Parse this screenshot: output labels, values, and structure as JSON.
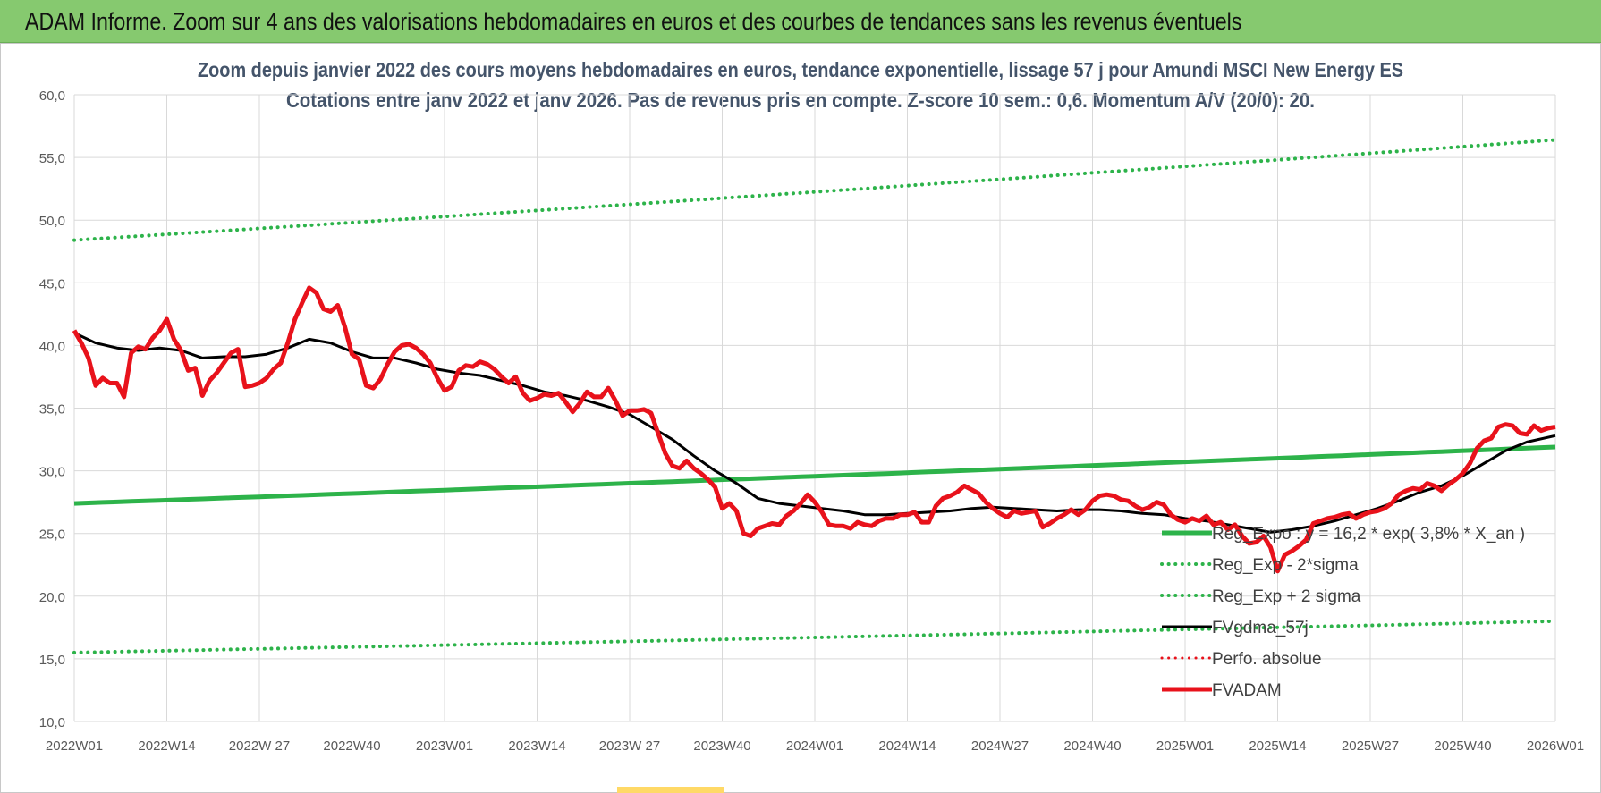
{
  "banner": {
    "title": "ADAM Informe. Zoom sur 4 ans des valorisations hebdomadaires en euros et des courbes de tendances sans les revenus éventuels"
  },
  "chart_data": {
    "type": "line",
    "title_line1": "Zoom depuis janvier 2022 des cours moyens hebdomadaires en euros, tendance exponentielle, lissage 57 j pour Amundi MSCI New Energy ES",
    "title_line2": "Cotations entre janv 2022 et janv 2026. Pas de revenus pris en compte. Z-score 10 sem.: 0,6. Momentum A/V (20/0): 20.",
    "ylim": [
      10,
      60
    ],
    "y_ticks": [
      "10,0",
      "15,0",
      "20,0",
      "25,0",
      "30,0",
      "35,0",
      "40,0",
      "45,0",
      "50,0",
      "55,0",
      "60,0"
    ],
    "x_range": [
      0,
      208
    ],
    "x_ticks": [
      {
        "x": 0,
        "label": "2022W01"
      },
      {
        "x": 13,
        "label": "2022W14"
      },
      {
        "x": 26,
        "label": "2022W 27"
      },
      {
        "x": 39,
        "label": "2022W40"
      },
      {
        "x": 52,
        "label": "2023W01"
      },
      {
        "x": 65,
        "label": "2023W14"
      },
      {
        "x": 78,
        "label": "2023W 27"
      },
      {
        "x": 91,
        "label": "2023W40"
      },
      {
        "x": 104,
        "label": "2024W01"
      },
      {
        "x": 117,
        "label": "2024W14"
      },
      {
        "x": 130,
        "label": "2024W27"
      },
      {
        "x": 143,
        "label": "2024W40"
      },
      {
        "x": 156,
        "label": "2025W01"
      },
      {
        "x": 169,
        "label": "2025W14"
      },
      {
        "x": 182,
        "label": "2025W27"
      },
      {
        "x": 195,
        "label": "2025W40"
      },
      {
        "x": 208,
        "label": "2026W01"
      }
    ],
    "trend_start": 27.4,
    "trend_end": 31.9,
    "upper_band_start": 48.4,
    "upper_band_end": 56.4,
    "lower_band_start": 15.5,
    "lower_band_end": 18.0,
    "series": [
      {
        "name": "Reg_Expo : y = 16,2 * exp( 3,8% * X_an )",
        "style": "solid",
        "color": "#2db34a",
        "width": 5
      },
      {
        "name": "Reg_Exp - 2*sigma",
        "style": "dotted",
        "color": "#2db34a",
        "width": 4
      },
      {
        "name": "Reg_Exp + 2 sigma",
        "style": "dotted",
        "color": "#2db34a",
        "width": 4
      },
      {
        "name": "FVgdma_57j",
        "style": "solid",
        "color": "#000000",
        "width": 3,
        "points": [
          [
            0,
            41.0
          ],
          [
            3,
            40.2
          ],
          [
            6,
            39.8
          ],
          [
            9,
            39.6
          ],
          [
            12,
            39.8
          ],
          [
            15,
            39.6
          ],
          [
            18,
            39.0
          ],
          [
            21,
            39.1
          ],
          [
            24,
            39.1
          ],
          [
            27,
            39.3
          ],
          [
            30,
            39.8
          ],
          [
            33,
            40.5
          ],
          [
            36,
            40.2
          ],
          [
            39,
            39.5
          ],
          [
            42,
            39.0
          ],
          [
            45,
            39.0
          ],
          [
            48,
            38.6
          ],
          [
            51,
            38.1
          ],
          [
            54,
            37.8
          ],
          [
            57,
            37.6
          ],
          [
            60,
            37.2
          ],
          [
            63,
            36.8
          ],
          [
            66,
            36.3
          ],
          [
            69,
            36.0
          ],
          [
            72,
            35.6
          ],
          [
            75,
            35.1
          ],
          [
            78,
            34.5
          ],
          [
            81,
            33.5
          ],
          [
            84,
            32.5
          ],
          [
            87,
            31.2
          ],
          [
            90,
            30.0
          ],
          [
            93,
            29.0
          ],
          [
            96,
            27.8
          ],
          [
            99,
            27.4
          ],
          [
            102,
            27.2
          ],
          [
            105,
            27.0
          ],
          [
            108,
            26.8
          ],
          [
            111,
            26.5
          ],
          [
            114,
            26.5
          ],
          [
            117,
            26.6
          ],
          [
            120,
            26.7
          ],
          [
            123,
            26.8
          ],
          [
            126,
            27.0
          ],
          [
            129,
            27.1
          ],
          [
            132,
            27.0
          ],
          [
            135,
            26.9
          ],
          [
            138,
            26.8
          ],
          [
            141,
            26.9
          ],
          [
            144,
            26.9
          ],
          [
            147,
            26.8
          ],
          [
            150,
            26.6
          ],
          [
            153,
            26.5
          ],
          [
            156,
            26.2
          ],
          [
            159,
            26.0
          ],
          [
            162,
            25.7
          ],
          [
            165,
            25.4
          ],
          [
            168,
            25.1
          ],
          [
            171,
            25.3
          ],
          [
            174,
            25.6
          ],
          [
            177,
            26.0
          ],
          [
            180,
            26.5
          ],
          [
            183,
            27.0
          ],
          [
            186,
            27.6
          ],
          [
            189,
            28.3
          ],
          [
            192,
            28.8
          ],
          [
            195,
            29.6
          ],
          [
            198,
            30.6
          ],
          [
            201,
            31.6
          ],
          [
            204,
            32.3
          ],
          [
            208,
            32.8
          ]
        ]
      },
      {
        "name": "Perfo. absolue",
        "style": "dotted",
        "color": "#e8121b",
        "width": 3
      },
      {
        "name": "FVADAM",
        "style": "solid",
        "color": "#e8121b",
        "width": 5,
        "points": [
          [
            0,
            41.2
          ],
          [
            1,
            40.2
          ],
          [
            2,
            39.0
          ],
          [
            3,
            36.8
          ],
          [
            4,
            37.4
          ],
          [
            5,
            37.0
          ],
          [
            6,
            37.0
          ],
          [
            7,
            35.9
          ],
          [
            8,
            39.4
          ],
          [
            9,
            39.9
          ],
          [
            10,
            39.7
          ],
          [
            11,
            40.6
          ],
          [
            12,
            41.2
          ],
          [
            13,
            42.1
          ],
          [
            14,
            40.5
          ],
          [
            15,
            39.6
          ],
          [
            16,
            38.0
          ],
          [
            17,
            38.2
          ],
          [
            18,
            36.0
          ],
          [
            19,
            37.2
          ],
          [
            20,
            37.8
          ],
          [
            21,
            38.6
          ],
          [
            22,
            39.4
          ],
          [
            23,
            39.7
          ],
          [
            24,
            36.7
          ],
          [
            25,
            36.8
          ],
          [
            26,
            37.0
          ],
          [
            27,
            37.4
          ],
          [
            28,
            38.1
          ],
          [
            29,
            38.6
          ],
          [
            30,
            40.2
          ],
          [
            31,
            42.1
          ],
          [
            32,
            43.4
          ],
          [
            33,
            44.6
          ],
          [
            34,
            44.2
          ],
          [
            35,
            42.9
          ],
          [
            36,
            42.7
          ],
          [
            37,
            43.2
          ],
          [
            38,
            41.5
          ],
          [
            39,
            39.3
          ],
          [
            40,
            38.9
          ],
          [
            41,
            36.8
          ],
          [
            42,
            36.6
          ],
          [
            43,
            37.3
          ],
          [
            44,
            38.5
          ],
          [
            45,
            39.5
          ],
          [
            46,
            40.0
          ],
          [
            47,
            40.1
          ],
          [
            48,
            39.8
          ],
          [
            49,
            39.3
          ],
          [
            50,
            38.6
          ],
          [
            51,
            37.4
          ],
          [
            52,
            36.4
          ],
          [
            53,
            36.7
          ],
          [
            54,
            38.0
          ],
          [
            55,
            38.4
          ],
          [
            56,
            38.3
          ],
          [
            57,
            38.7
          ],
          [
            58,
            38.5
          ],
          [
            59,
            38.1
          ],
          [
            60,
            37.5
          ],
          [
            61,
            37.0
          ],
          [
            62,
            37.5
          ],
          [
            63,
            36.2
          ],
          [
            64,
            35.6
          ],
          [
            65,
            35.8
          ],
          [
            66,
            36.1
          ],
          [
            67,
            36.0
          ],
          [
            68,
            36.2
          ],
          [
            69,
            35.5
          ],
          [
            70,
            34.7
          ],
          [
            71,
            35.4
          ],
          [
            72,
            36.3
          ],
          [
            73,
            35.9
          ],
          [
            74,
            35.9
          ],
          [
            75,
            36.6
          ],
          [
            76,
            35.6
          ],
          [
            77,
            34.4
          ],
          [
            78,
            34.8
          ],
          [
            79,
            34.8
          ],
          [
            80,
            34.9
          ],
          [
            81,
            34.6
          ],
          [
            82,
            33.0
          ],
          [
            83,
            31.4
          ],
          [
            84,
            30.4
          ],
          [
            85,
            30.2
          ],
          [
            86,
            30.8
          ],
          [
            87,
            30.2
          ],
          [
            88,
            29.8
          ],
          [
            89,
            29.3
          ],
          [
            90,
            28.7
          ],
          [
            91,
            27.0
          ],
          [
            92,
            27.4
          ],
          [
            93,
            26.8
          ],
          [
            94,
            25.0
          ],
          [
            95,
            24.8
          ],
          [
            96,
            25.4
          ],
          [
            97,
            25.6
          ],
          [
            98,
            25.8
          ],
          [
            99,
            25.7
          ],
          [
            100,
            26.4
          ],
          [
            101,
            26.8
          ],
          [
            102,
            27.4
          ],
          [
            103,
            28.1
          ],
          [
            104,
            27.5
          ],
          [
            105,
            26.7
          ],
          [
            106,
            25.7
          ],
          [
            107,
            25.6
          ],
          [
            108,
            25.6
          ],
          [
            109,
            25.4
          ],
          [
            110,
            25.9
          ],
          [
            111,
            25.7
          ],
          [
            112,
            25.6
          ],
          [
            113,
            26.0
          ],
          [
            114,
            26.2
          ],
          [
            115,
            26.2
          ],
          [
            116,
            26.5
          ],
          [
            117,
            26.5
          ],
          [
            118,
            26.7
          ],
          [
            119,
            25.9
          ],
          [
            120,
            25.9
          ],
          [
            121,
            27.2
          ],
          [
            122,
            27.8
          ],
          [
            123,
            28.0
          ],
          [
            124,
            28.3
          ],
          [
            125,
            28.8
          ],
          [
            126,
            28.5
          ],
          [
            127,
            28.2
          ],
          [
            128,
            27.5
          ],
          [
            129,
            27.0
          ],
          [
            130,
            26.6
          ],
          [
            131,
            26.3
          ],
          [
            132,
            26.8
          ],
          [
            133,
            26.6
          ],
          [
            134,
            26.7
          ],
          [
            135,
            26.8
          ],
          [
            136,
            25.5
          ],
          [
            137,
            25.8
          ],
          [
            138,
            26.2
          ],
          [
            139,
            26.5
          ],
          [
            140,
            26.9
          ],
          [
            141,
            26.5
          ],
          [
            142,
            26.9
          ],
          [
            143,
            27.6
          ],
          [
            144,
            28.0
          ],
          [
            145,
            28.1
          ],
          [
            146,
            28.0
          ],
          [
            147,
            27.7
          ],
          [
            148,
            27.6
          ],
          [
            149,
            27.2
          ],
          [
            150,
            26.9
          ],
          [
            151,
            27.1
          ],
          [
            152,
            27.5
          ],
          [
            153,
            27.3
          ],
          [
            154,
            26.5
          ],
          [
            155,
            26.1
          ],
          [
            156,
            25.9
          ],
          [
            157,
            26.2
          ],
          [
            158,
            26.0
          ],
          [
            159,
            26.4
          ],
          [
            160,
            25.7
          ],
          [
            161,
            25.9
          ],
          [
            162,
            25.3
          ],
          [
            163,
            25.7
          ],
          [
            164,
            24.8
          ],
          [
            165,
            24.2
          ],
          [
            166,
            24.3
          ],
          [
            167,
            24.8
          ],
          [
            168,
            23.9
          ],
          [
            169,
            22.0
          ],
          [
            170,
            23.3
          ],
          [
            171,
            23.6
          ],
          [
            172,
            24.0
          ],
          [
            173,
            24.5
          ],
          [
            174,
            25.8
          ],
          [
            175,
            26.0
          ],
          [
            176,
            26.2
          ],
          [
            177,
            26.3
          ],
          [
            178,
            26.5
          ],
          [
            179,
            26.6
          ],
          [
            180,
            26.2
          ],
          [
            181,
            26.5
          ],
          [
            182,
            26.7
          ],
          [
            183,
            26.8
          ],
          [
            184,
            27.0
          ],
          [
            185,
            27.4
          ],
          [
            186,
            28.1
          ],
          [
            187,
            28.4
          ],
          [
            188,
            28.6
          ],
          [
            189,
            28.5
          ],
          [
            190,
            29.0
          ],
          [
            191,
            28.8
          ],
          [
            192,
            28.4
          ],
          [
            193,
            28.9
          ],
          [
            194,
            29.3
          ],
          [
            195,
            29.8
          ],
          [
            196,
            30.6
          ],
          [
            197,
            31.8
          ],
          [
            198,
            32.4
          ],
          [
            199,
            32.6
          ],
          [
            200,
            33.5
          ],
          [
            201,
            33.7
          ],
          [
            202,
            33.6
          ],
          [
            203,
            33.0
          ],
          [
            204,
            32.9
          ],
          [
            205,
            33.6
          ],
          [
            206,
            33.2
          ],
          [
            207,
            33.4
          ],
          [
            208,
            33.5
          ]
        ]
      }
    ]
  }
}
